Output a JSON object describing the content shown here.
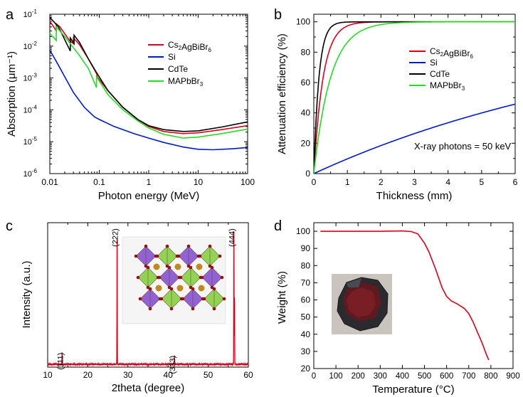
{
  "colors": {
    "red": "#d9001b",
    "blue": "#0019c8",
    "black": "#000000",
    "green": "#22dd22",
    "text": "#000000"
  },
  "chart_data": [
    {
      "id": "a",
      "panel_label": "a",
      "type": "line",
      "xscale": "log",
      "yscale": "log",
      "xlim": [
        0.01,
        100
      ],
      "ylim": [
        1e-06,
        0.1
      ],
      "xlabel": "Photon energy (MeV)",
      "ylabel": "Absorption (μm⁻¹)",
      "xticks": [
        0.01,
        0.1,
        1,
        10,
        100
      ],
      "xtick_labels": [
        "0.01",
        "0.1",
        "1",
        "10",
        "100"
      ],
      "yticks": [
        1e-06,
        1e-05,
        0.0001,
        0.001,
        0.01,
        0.1
      ],
      "ytick_labels": [
        [
          "10",
          "-6"
        ],
        [
          "10",
          "-5"
        ],
        [
          "10",
          "-4"
        ],
        [
          "10",
          "-3"
        ],
        [
          "10",
          "-2"
        ],
        [
          "10",
          "-1"
        ]
      ],
      "legend_position": "top-right",
      "series": [
        {
          "name": "Cs2AgBiBr6",
          "name_parts": [
            [
              "Cs",
              ""
            ],
            [
              "2",
              "sub"
            ],
            [
              "AgBiBr",
              ""
            ],
            [
              "6",
              "sub"
            ]
          ],
          "color": "red",
          "x": [
            0.01,
            0.012,
            0.0135,
            0.0135,
            0.016,
            0.025,
            0.03,
            0.03,
            0.04,
            0.06,
            0.09,
            0.09,
            0.15,
            0.3,
            0.6,
            1,
            2,
            5,
            10,
            30,
            100
          ],
          "y": [
            0.06,
            0.04,
            0.03,
            0.05,
            0.04,
            0.015,
            0.012,
            0.018,
            0.011,
            0.004,
            0.0013,
            0.0011,
            0.0004,
            0.00012,
            5e-05,
            3e-05,
            2.1e-05,
            1.8e-05,
            1.9e-05,
            2.4e-05,
            3.2e-05
          ]
        },
        {
          "name": "Si",
          "name_parts": [
            [
              "Si",
              ""
            ]
          ],
          "color": "blue",
          "x": [
            0.01,
            0.015,
            0.02,
            0.03,
            0.05,
            0.08,
            0.1,
            0.2,
            0.5,
            1,
            2,
            5,
            10,
            20,
            50,
            100
          ],
          "y": [
            0.0075,
            0.0025,
            0.0011,
            0.00035,
            0.00012,
            6e-05,
            5e-05,
            3e-05,
            1.8e-05,
            1.3e-05,
            9.5e-06,
            6.8e-06,
            5.8e-06,
            5.6e-06,
            6e-06,
            6.6e-06
          ]
        },
        {
          "name": "CdTe",
          "name_parts": [
            [
              "CdTe",
              ""
            ]
          ],
          "color": "black",
          "x": [
            0.01,
            0.015,
            0.026,
            0.026,
            0.031,
            0.031,
            0.04,
            0.06,
            0.09,
            0.15,
            0.3,
            0.6,
            1,
            2,
            5,
            10,
            30,
            100
          ],
          "y": [
            0.08,
            0.04,
            0.007,
            0.018,
            0.012,
            0.022,
            0.013,
            0.004,
            0.0014,
            0.0004,
            0.00012,
            5e-05,
            3.2e-05,
            2.4e-05,
            2.1e-05,
            2.2e-05,
            2.9e-05,
            4.2e-05
          ]
        },
        {
          "name": "MAPbBr3",
          "name_parts": [
            [
              "MAPbBr",
              ""
            ],
            [
              "3",
              "sub"
            ]
          ],
          "color": "green",
          "x": [
            0.01,
            0.0135,
            0.0135,
            0.02,
            0.04,
            0.06,
            0.088,
            0.088,
            0.15,
            0.3,
            0.6,
            1,
            2,
            5,
            10,
            30,
            100
          ],
          "y": [
            0.025,
            0.015,
            0.04,
            0.02,
            0.005,
            0.002,
            0.0005,
            0.0011,
            0.0003,
            0.0001,
            4.5e-05,
            2.7e-05,
            1.7e-05,
            1.3e-05,
            1.4e-05,
            1.8e-05,
            2.5e-05
          ]
        }
      ]
    },
    {
      "id": "b",
      "panel_label": "b",
      "type": "line",
      "xlim": [
        0,
        6
      ],
      "ylim": [
        0,
        105
      ],
      "xlabel": "Thickness (mm)",
      "ylabel": "Attenuation efficiency (%)",
      "xticks": [
        0,
        1,
        2,
        3,
        4,
        5,
        6
      ],
      "xtick_labels": [
        "0",
        "1",
        "2",
        "3",
        "4",
        "5",
        "6"
      ],
      "yticks": [
        0,
        20,
        40,
        60,
        80,
        100
      ],
      "ytick_labels": [
        "0",
        "20",
        "40",
        "60",
        "80",
        "100"
      ],
      "legend_position": "top-right",
      "annotation": "X-ray photons = 50 keV",
      "series": [
        {
          "name": "Cs2AgBiBr6",
          "name_parts": [
            [
              "Cs",
              ""
            ],
            [
              "2",
              "sub"
            ],
            [
              "AgBiBr",
              ""
            ],
            [
              "6",
              "sub"
            ]
          ],
          "color": "red",
          "attenuation_per_mm": 3.6
        },
        {
          "name": "Si",
          "name_parts": [
            [
              "Si",
              ""
            ]
          ],
          "color": "blue",
          "attenuation_per_mm": 0.102
        },
        {
          "name": "CdTe",
          "name_parts": [
            [
              "CdTe",
              ""
            ]
          ],
          "color": "black",
          "attenuation_per_mm": 6.5
        },
        {
          "name": "MAPbBr3",
          "name_parts": [
            [
              "MAPbBr",
              ""
            ],
            [
              "3",
              "sub"
            ]
          ],
          "color": "green",
          "attenuation_per_mm": 2.0
        }
      ]
    },
    {
      "id": "c",
      "panel_label": "c",
      "type": "line",
      "xlim": [
        10,
        60
      ],
      "ylim": [
        0,
        100
      ],
      "xlabel": "2theta (degree)",
      "ylabel": "Intensity (a.u.)",
      "xticks": [
        10,
        20,
        30,
        40,
        50,
        60
      ],
      "xtick_labels": [
        "10",
        "20",
        "30",
        "40",
        "50",
        "60"
      ],
      "baseline": 2,
      "color": "red",
      "peaks": [
        {
          "label": "(111)",
          "x": 13.6,
          "height": 8
        },
        {
          "label": "(222)",
          "x": 27.3,
          "height": 94
        },
        {
          "label": "(333)",
          "x": 41.6,
          "height": 6
        },
        {
          "label": "(444)",
          "x": 56.4,
          "height": 94
        },
        {
          "label": "",
          "x": 56.55,
          "height": 50
        }
      ]
    },
    {
      "id": "d",
      "panel_label": "d",
      "type": "line",
      "xlim": [
        0,
        900
      ],
      "ylim": [
        20,
        105
      ],
      "xlabel": "Temperature (°C)",
      "ylabel": "Weight (%)",
      "xticks": [
        0,
        100,
        200,
        300,
        400,
        500,
        600,
        700,
        800,
        900
      ],
      "xtick_labels": [
        "0",
        "100",
        "200",
        "300",
        "400",
        "500",
        "600",
        "700",
        "800",
        "900"
      ],
      "yticks": [
        20,
        30,
        40,
        50,
        60,
        70,
        80,
        90,
        100
      ],
      "ytick_labels": [
        "20",
        "30",
        "40",
        "50",
        "60",
        "70",
        "80",
        "90",
        "100"
      ],
      "series": [
        {
          "name": "",
          "color": "red",
          "x": [
            30,
            100,
            200,
            300,
            400,
            440,
            470,
            500,
            520,
            550,
            580,
            600,
            620,
            650,
            680,
            700,
            720,
            740,
            760,
            780,
            790
          ],
          "y": [
            100,
            100,
            100,
            100,
            100.2,
            99.8,
            98.5,
            93,
            88,
            78,
            67,
            62,
            59.5,
            57.5,
            55,
            52,
            47,
            41,
            35,
            28,
            25
          ]
        }
      ]
    }
  ]
}
